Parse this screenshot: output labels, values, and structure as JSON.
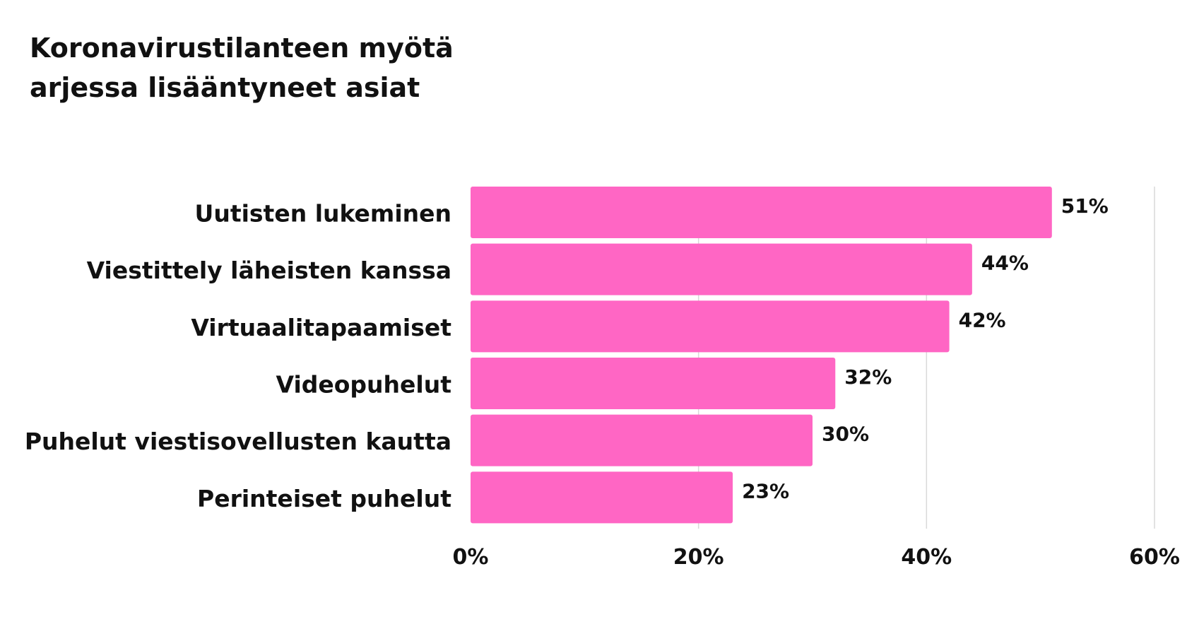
{
  "chart_data": {
    "type": "bar",
    "orientation": "horizontal",
    "title": "Koronavirustilanteen myötä arjessa lisääntyneet asiat",
    "categories": [
      "Uutisten lukeminen",
      "Viestittely läheisten kanssa",
      "Virtuaalitapaamiset",
      "Videopuhelut",
      "Puhelut viestisovellusten kautta",
      "Perinteiset puhelut"
    ],
    "values": [
      51,
      44,
      42,
      32,
      30,
      23
    ],
    "value_labels": [
      "51%",
      "44%",
      "42%",
      "32%",
      "30%",
      "23%"
    ],
    "xlim": [
      0,
      60
    ],
    "x_ticks": [
      0,
      20,
      40,
      60
    ],
    "x_tick_labels": [
      "0%",
      "20%",
      "40%",
      "60%"
    ],
    "grid": true,
    "bar_color": "#ff66c4",
    "grid_color": "#d9d9d9",
    "text_color": "#111111"
  }
}
